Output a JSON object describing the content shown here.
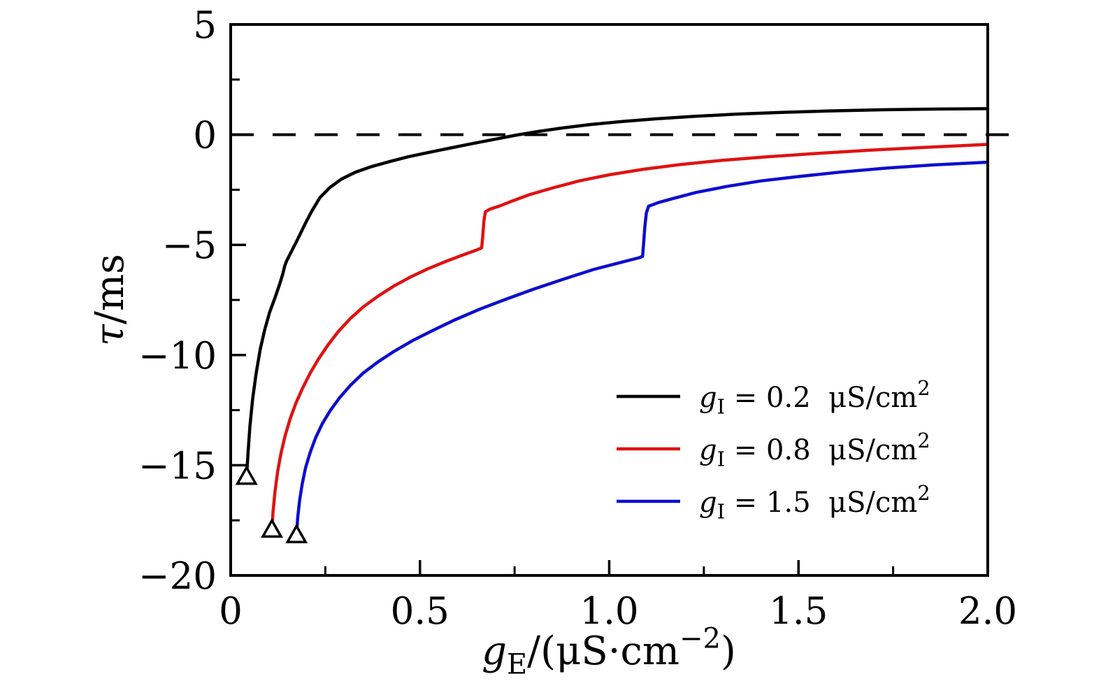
{
  "chart_data": {
    "type": "line",
    "title": "",
    "xlabel": "gE/(μS·cm−2)",
    "ylabel": "τ/ms",
    "xlabel_segments": [
      {
        "t": "g",
        "s": "i"
      },
      {
        "t": "E",
        "s": "sub"
      },
      {
        "t": "/(μS·cm",
        "s": "n"
      },
      {
        "t": "−2",
        "s": "sup"
      },
      {
        "t": ")",
        "s": "n"
      }
    ],
    "ylabel_segments": [
      {
        "t": "τ",
        "s": "i"
      },
      {
        "t": "/ms",
        "s": "n"
      }
    ],
    "xlim": [
      0,
      2.0
    ],
    "ylim": [
      -20,
      5
    ],
    "x_major_ticks": {
      "values": [
        0,
        0.5,
        1.0,
        1.5,
        2.0
      ],
      "labels": [
        "0",
        "0.5",
        "1.0",
        "1.5",
        "2.0"
      ]
    },
    "x_minor_ticks": [
      0.25,
      0.75,
      1.25,
      1.75
    ],
    "y_major_ticks": {
      "values": [
        5,
        0,
        -5,
        -10,
        -15,
        -20
      ],
      "labels": [
        "5",
        "0",
        "−5",
        "−10",
        "−15",
        "−20"
      ]
    },
    "y_minor_ticks": [
      2.5,
      -2.5,
      -7.5,
      -12.5,
      -17.5
    ],
    "grid": false,
    "frame": true,
    "reference_line": {
      "y": 0,
      "style": "dashed",
      "color": "#000000"
    },
    "legend_position": "inside-lower-right",
    "series": [
      {
        "id": "gI-0.2",
        "name": "gI = 0.2 μS/cm²",
        "label_segments": [
          {
            "t": "g",
            "s": "i"
          },
          {
            "t": "I",
            "s": "sub"
          },
          {
            "t": " = 0.2  μS/cm",
            "s": "n"
          },
          {
            "t": "2",
            "s": "sup"
          }
        ],
        "color": "#000000",
        "start_marker": {
          "shape": "open-triangle-up",
          "x": 0.042,
          "y": -15.55
        },
        "points": [
          [
            0.042,
            -15.55
          ],
          [
            0.046,
            -14.4
          ],
          [
            0.051,
            -13.2
          ],
          [
            0.058,
            -12.0
          ],
          [
            0.067,
            -10.85
          ],
          [
            0.078,
            -9.75
          ],
          [
            0.09,
            -8.85
          ],
          [
            0.103,
            -8.05
          ],
          [
            0.117,
            -7.4
          ],
          [
            0.13,
            -6.75
          ],
          [
            0.138,
            -6.3
          ],
          [
            0.143,
            -5.95
          ],
          [
            0.148,
            -5.72
          ],
          [
            0.156,
            -5.45
          ],
          [
            0.164,
            -5.18
          ],
          [
            0.173,
            -4.88
          ],
          [
            0.184,
            -4.5
          ],
          [
            0.198,
            -4.0
          ],
          [
            0.215,
            -3.45
          ],
          [
            0.236,
            -2.85
          ],
          [
            0.262,
            -2.4
          ],
          [
            0.292,
            -2.02
          ],
          [
            0.33,
            -1.7
          ],
          [
            0.372,
            -1.45
          ],
          [
            0.42,
            -1.22
          ],
          [
            0.47,
            -1.0
          ],
          [
            0.525,
            -0.8
          ],
          [
            0.582,
            -0.6
          ],
          [
            0.64,
            -0.4
          ],
          [
            0.7,
            -0.2
          ],
          [
            0.752,
            -0.03
          ],
          [
            0.81,
            0.14
          ],
          [
            0.875,
            0.3
          ],
          [
            0.95,
            0.46
          ],
          [
            1.035,
            0.6
          ],
          [
            1.125,
            0.72
          ],
          [
            1.225,
            0.83
          ],
          [
            1.335,
            0.93
          ],
          [
            1.455,
            1.01
          ],
          [
            1.585,
            1.08
          ],
          [
            1.72,
            1.13
          ],
          [
            1.86,
            1.16
          ],
          [
            2.0,
            1.18
          ]
        ]
      },
      {
        "id": "gI-0.8",
        "name": "gI = 0.8 μS/cm²",
        "label_segments": [
          {
            "t": "g",
            "s": "i"
          },
          {
            "t": "I",
            "s": "sub"
          },
          {
            "t": " = 0.8  μS/cm",
            "s": "n"
          },
          {
            "t": "2",
            "s": "sup"
          }
        ],
        "color": "#e01212",
        "start_marker": {
          "shape": "open-triangle-up",
          "x": 0.109,
          "y": -17.95
        },
        "jump_at_x": 0.667,
        "points": [
          [
            0.109,
            -17.95
          ],
          [
            0.112,
            -17.1
          ],
          [
            0.117,
            -16.2
          ],
          [
            0.124,
            -15.3
          ],
          [
            0.133,
            -14.45
          ],
          [
            0.144,
            -13.65
          ],
          [
            0.157,
            -12.9
          ],
          [
            0.172,
            -12.2
          ],
          [
            0.19,
            -11.5
          ],
          [
            0.21,
            -10.82
          ],
          [
            0.233,
            -10.15
          ],
          [
            0.258,
            -9.52
          ],
          [
            0.285,
            -8.92
          ],
          [
            0.315,
            -8.36
          ],
          [
            0.35,
            -7.82
          ],
          [
            0.39,
            -7.32
          ],
          [
            0.432,
            -6.86
          ],
          [
            0.476,
            -6.45
          ],
          [
            0.522,
            -6.08
          ],
          [
            0.57,
            -5.74
          ],
          [
            0.615,
            -5.45
          ],
          [
            0.652,
            -5.22
          ],
          [
            0.663,
            -5.14
          ],
          [
            0.666,
            -4.6
          ],
          [
            0.669,
            -3.9
          ],
          [
            0.673,
            -3.5
          ],
          [
            0.685,
            -3.38
          ],
          [
            0.71,
            -3.24
          ],
          [
            0.745,
            -3.0
          ],
          [
            0.79,
            -2.72
          ],
          [
            0.85,
            -2.42
          ],
          [
            0.92,
            -2.1
          ],
          [
            1.0,
            -1.82
          ],
          [
            1.09,
            -1.57
          ],
          [
            1.19,
            -1.35
          ],
          [
            1.3,
            -1.16
          ],
          [
            1.42,
            -1.0
          ],
          [
            1.55,
            -0.85
          ],
          [
            1.69,
            -0.7
          ],
          [
            1.84,
            -0.57
          ],
          [
            2.0,
            -0.44
          ]
        ]
      },
      {
        "id": "gI-1.5",
        "name": "gI = 1.5 μS/cm²",
        "label_segments": [
          {
            "t": "g",
            "s": "i"
          },
          {
            "t": "I",
            "s": "sub"
          },
          {
            "t": " = 1.5  μS/cm",
            "s": "n"
          },
          {
            "t": "2",
            "s": "sup"
          }
        ],
        "color": "#0d0dd0",
        "start_marker": {
          "shape": "open-triangle-up",
          "x": 0.174,
          "y": -18.2
        },
        "jump_at_x": 1.093,
        "points": [
          [
            0.174,
            -18.2
          ],
          [
            0.177,
            -17.4
          ],
          [
            0.182,
            -16.6
          ],
          [
            0.189,
            -15.85
          ],
          [
            0.198,
            -15.1
          ],
          [
            0.21,
            -14.42
          ],
          [
            0.224,
            -13.77
          ],
          [
            0.242,
            -13.12
          ],
          [
            0.263,
            -12.52
          ],
          [
            0.288,
            -11.93
          ],
          [
            0.316,
            -11.38
          ],
          [
            0.35,
            -10.82
          ],
          [
            0.39,
            -10.3
          ],
          [
            0.432,
            -9.83
          ],
          [
            0.48,
            -9.35
          ],
          [
            0.532,
            -8.9
          ],
          [
            0.59,
            -8.42
          ],
          [
            0.658,
            -7.92
          ],
          [
            0.73,
            -7.45
          ],
          [
            0.802,
            -7.0
          ],
          [
            0.88,
            -6.55
          ],
          [
            0.958,
            -6.12
          ],
          [
            1.03,
            -5.8
          ],
          [
            1.08,
            -5.58
          ],
          [
            1.088,
            -5.52
          ],
          [
            1.091,
            -4.9
          ],
          [
            1.094,
            -4.2
          ],
          [
            1.098,
            -3.55
          ],
          [
            1.104,
            -3.25
          ],
          [
            1.13,
            -3.08
          ],
          [
            1.172,
            -2.88
          ],
          [
            1.23,
            -2.62
          ],
          [
            1.31,
            -2.35
          ],
          [
            1.4,
            -2.1
          ],
          [
            1.5,
            -1.9
          ],
          [
            1.61,
            -1.7
          ],
          [
            1.73,
            -1.52
          ],
          [
            1.86,
            -1.37
          ],
          [
            2.0,
            -1.25
          ]
        ]
      }
    ]
  },
  "colors": {
    "axis": "#000000",
    "background": "#ffffff",
    "series_black": "#000000",
    "series_red": "#e01212",
    "series_blue": "#0d0dd0"
  }
}
